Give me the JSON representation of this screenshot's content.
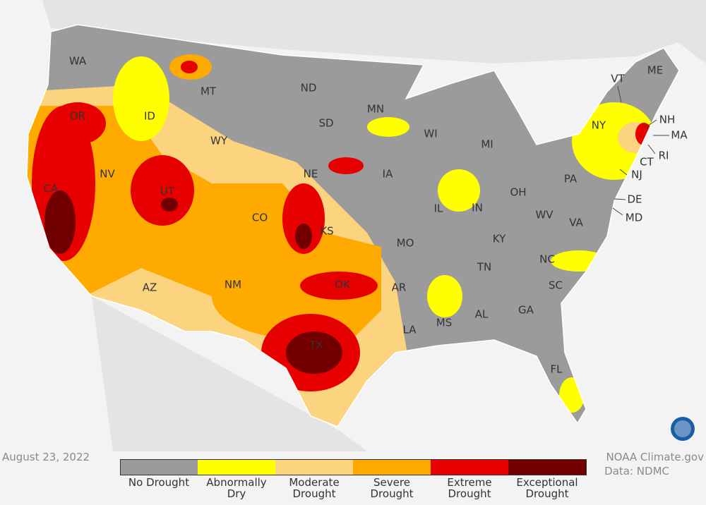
{
  "date": "August 23, 2022",
  "legend": [
    {
      "label": "No Drought",
      "color": "#9b9b9b"
    },
    {
      "label": "Abnormally Dry",
      "color": "#ffff00"
    },
    {
      "label": "Moderate Drought",
      "color": "#fcd37f"
    },
    {
      "label": "Severe Drought",
      "color": "#ffaa00"
    },
    {
      "label": "Extreme Drought",
      "color": "#e60000"
    },
    {
      "label": "Exceptional Drought",
      "color": "#730000"
    }
  ],
  "state_labels": [
    "WA",
    "OR",
    "CA",
    "NV",
    "ID",
    "MT",
    "WY",
    "UT",
    "AZ",
    "CO",
    "NM",
    "ND",
    "SD",
    "NE",
    "KS",
    "OK",
    "TX",
    "MN",
    "IA",
    "MO",
    "AR",
    "LA",
    "WI",
    "IL",
    "MI",
    "IN",
    "OH",
    "KY",
    "TN",
    "MS",
    "AL",
    "GA",
    "FL",
    "SC",
    "NC",
    "VA",
    "WV",
    "PA",
    "NY",
    "VT",
    "NH",
    "ME",
    "MA",
    "RI",
    "CT",
    "NJ",
    "DE",
    "MD"
  ],
  "credit": [
    "NOAA Climate.gov",
    "Data: NDMC"
  ]
}
